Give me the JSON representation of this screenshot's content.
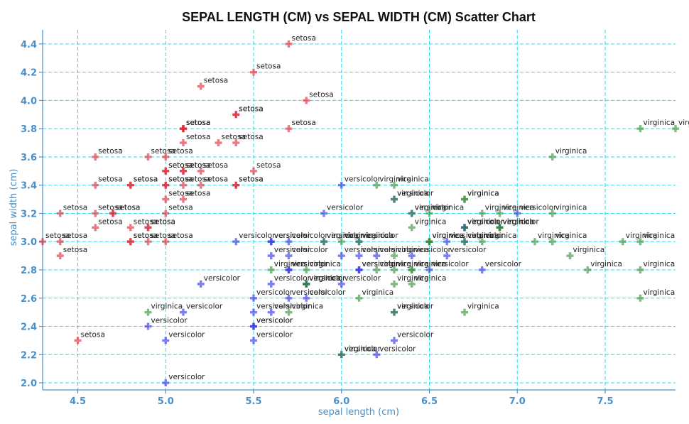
{
  "chart_data": {
    "type": "scatter",
    "title": "SEPAL LENGTH (CM) vs SEPAL WIDTH (CM) Scatter Chart",
    "xlabel": "sepal length (cm)",
    "ylabel": "sepal width (cm)",
    "xlim": [
      4.3,
      7.9
    ],
    "ylim": [
      1.95,
      4.5
    ],
    "grid": true,
    "x_ticks": [
      4.5,
      5.0,
      5.5,
      6.0,
      6.5,
      7.0,
      7.5
    ],
    "x_tick_labels": [
      "4.5",
      "5.0",
      "5.5",
      "6.0",
      "6.5",
      "7.0",
      "7.5"
    ],
    "y_ticks": [
      2.0,
      2.2,
      2.4,
      2.6,
      2.8,
      3.0,
      3.2,
      3.4,
      3.6,
      3.8,
      4.0,
      4.2,
      4.4
    ],
    "y_tick_labels": [
      "2.0",
      "2.2",
      "2.4",
      "2.6",
      "2.8",
      "3.0",
      "3.2",
      "3.4",
      "3.6",
      "3.8",
      "4.0",
      "4.2",
      "4.4"
    ],
    "colors": {
      "setosa": "#e0202e",
      "versicolor": "#2a2ae0",
      "virginica": "#2e8b2e"
    },
    "series": [
      {
        "label": "setosa",
        "points": [
          [
            5.1,
            3.5
          ],
          [
            4.9,
            3.0
          ],
          [
            4.7,
            3.2
          ],
          [
            4.6,
            3.1
          ],
          [
            5.0,
            3.6
          ],
          [
            5.4,
            3.9
          ],
          [
            4.6,
            3.4
          ],
          [
            5.0,
            3.4
          ],
          [
            4.4,
            2.9
          ],
          [
            4.9,
            3.1
          ],
          [
            5.4,
            3.7
          ],
          [
            4.8,
            3.4
          ],
          [
            4.8,
            3.0
          ],
          [
            4.3,
            3.0
          ],
          [
            5.8,
            4.0
          ],
          [
            5.7,
            4.4
          ],
          [
            5.4,
            3.9
          ],
          [
            5.1,
            3.5
          ],
          [
            5.7,
            3.8
          ],
          [
            5.1,
            3.8
          ],
          [
            5.4,
            3.4
          ],
          [
            5.1,
            3.7
          ],
          [
            4.6,
            3.6
          ],
          [
            5.1,
            3.3
          ],
          [
            4.8,
            3.4
          ],
          [
            5.0,
            3.0
          ],
          [
            5.0,
            3.4
          ],
          [
            5.2,
            3.5
          ],
          [
            5.2,
            3.4
          ],
          [
            4.7,
            3.2
          ],
          [
            4.8,
            3.1
          ],
          [
            5.4,
            3.4
          ],
          [
            5.2,
            4.1
          ],
          [
            5.5,
            4.2
          ],
          [
            4.9,
            3.1
          ],
          [
            5.0,
            3.2
          ],
          [
            5.5,
            3.5
          ],
          [
            4.9,
            3.6
          ],
          [
            4.4,
            3.0
          ],
          [
            5.1,
            3.4
          ],
          [
            5.0,
            3.5
          ],
          [
            4.5,
            2.3
          ],
          [
            4.4,
            3.2
          ],
          [
            5.0,
            3.5
          ],
          [
            5.1,
            3.8
          ],
          [
            4.8,
            3.0
          ],
          [
            5.1,
            3.8
          ],
          [
            4.6,
            3.2
          ],
          [
            5.3,
            3.7
          ],
          [
            5.0,
            3.3
          ]
        ]
      },
      {
        "label": "versicolor",
        "points": [
          [
            7.0,
            3.2
          ],
          [
            6.4,
            3.2
          ],
          [
            6.9,
            3.1
          ],
          [
            5.5,
            2.3
          ],
          [
            6.5,
            2.8
          ],
          [
            5.7,
            2.8
          ],
          [
            6.3,
            3.3
          ],
          [
            4.9,
            2.4
          ],
          [
            6.6,
            2.9
          ],
          [
            5.2,
            2.7
          ],
          [
            5.0,
            2.0
          ],
          [
            5.9,
            3.0
          ],
          [
            6.0,
            2.2
          ],
          [
            6.1,
            2.9
          ],
          [
            5.6,
            2.9
          ],
          [
            6.7,
            3.1
          ],
          [
            5.6,
            3.0
          ],
          [
            5.8,
            2.7
          ],
          [
            6.2,
            2.2
          ],
          [
            5.6,
            2.5
          ],
          [
            5.9,
            3.2
          ],
          [
            6.1,
            2.8
          ],
          [
            6.3,
            2.5
          ],
          [
            6.1,
            2.8
          ],
          [
            6.4,
            2.9
          ],
          [
            6.6,
            3.0
          ],
          [
            6.8,
            2.8
          ],
          [
            6.7,
            3.0
          ],
          [
            6.0,
            2.9
          ],
          [
            5.7,
            2.6
          ],
          [
            5.5,
            2.4
          ],
          [
            5.5,
            2.4
          ],
          [
            5.8,
            2.7
          ],
          [
            6.0,
            2.7
          ],
          [
            5.4,
            3.0
          ],
          [
            6.0,
            3.4
          ],
          [
            6.7,
            3.1
          ],
          [
            6.3,
            2.3
          ],
          [
            5.6,
            3.0
          ],
          [
            5.5,
            2.5
          ],
          [
            5.5,
            2.6
          ],
          [
            6.1,
            3.0
          ],
          [
            5.8,
            2.6
          ],
          [
            5.0,
            2.3
          ],
          [
            5.6,
            2.7
          ],
          [
            5.7,
            3.0
          ],
          [
            5.7,
            2.9
          ],
          [
            6.2,
            2.9
          ],
          [
            5.1,
            2.5
          ],
          [
            5.7,
            2.8
          ]
        ]
      },
      {
        "label": "virginica",
        "points": [
          [
            6.3,
            3.3
          ],
          [
            5.8,
            2.7
          ],
          [
            7.1,
            3.0
          ],
          [
            6.3,
            2.9
          ],
          [
            6.5,
            3.0
          ],
          [
            7.6,
            3.0
          ],
          [
            4.9,
            2.5
          ],
          [
            7.3,
            2.9
          ],
          [
            6.7,
            2.5
          ],
          [
            7.2,
            3.6
          ],
          [
            6.5,
            3.2
          ],
          [
            6.4,
            2.7
          ],
          [
            6.8,
            3.0
          ],
          [
            5.7,
            2.5
          ],
          [
            5.8,
            2.8
          ],
          [
            6.4,
            3.2
          ],
          [
            6.5,
            3.0
          ],
          [
            7.7,
            3.8
          ],
          [
            7.7,
            2.6
          ],
          [
            6.0,
            2.2
          ],
          [
            6.9,
            3.2
          ],
          [
            5.6,
            2.8
          ],
          [
            7.7,
            2.8
          ],
          [
            6.3,
            2.7
          ],
          [
            6.7,
            3.3
          ],
          [
            7.2,
            3.2
          ],
          [
            6.2,
            2.8
          ],
          [
            6.1,
            3.0
          ],
          [
            6.4,
            2.8
          ],
          [
            7.2,
            3.0
          ],
          [
            7.4,
            2.8
          ],
          [
            7.9,
            3.8
          ],
          [
            6.4,
            2.8
          ],
          [
            6.3,
            2.8
          ],
          [
            6.1,
            2.6
          ],
          [
            7.7,
            3.0
          ],
          [
            6.3,
            3.4
          ],
          [
            6.4,
            3.1
          ],
          [
            6.0,
            3.0
          ],
          [
            6.9,
            3.1
          ],
          [
            6.7,
            3.1
          ],
          [
            6.9,
            3.1
          ],
          [
            5.8,
            2.7
          ],
          [
            6.8,
            3.2
          ],
          [
            6.7,
            3.3
          ],
          [
            6.7,
            3.0
          ],
          [
            6.3,
            2.5
          ],
          [
            6.5,
            3.0
          ],
          [
            6.2,
            3.4
          ],
          [
            5.9,
            3.0
          ]
        ]
      }
    ]
  }
}
